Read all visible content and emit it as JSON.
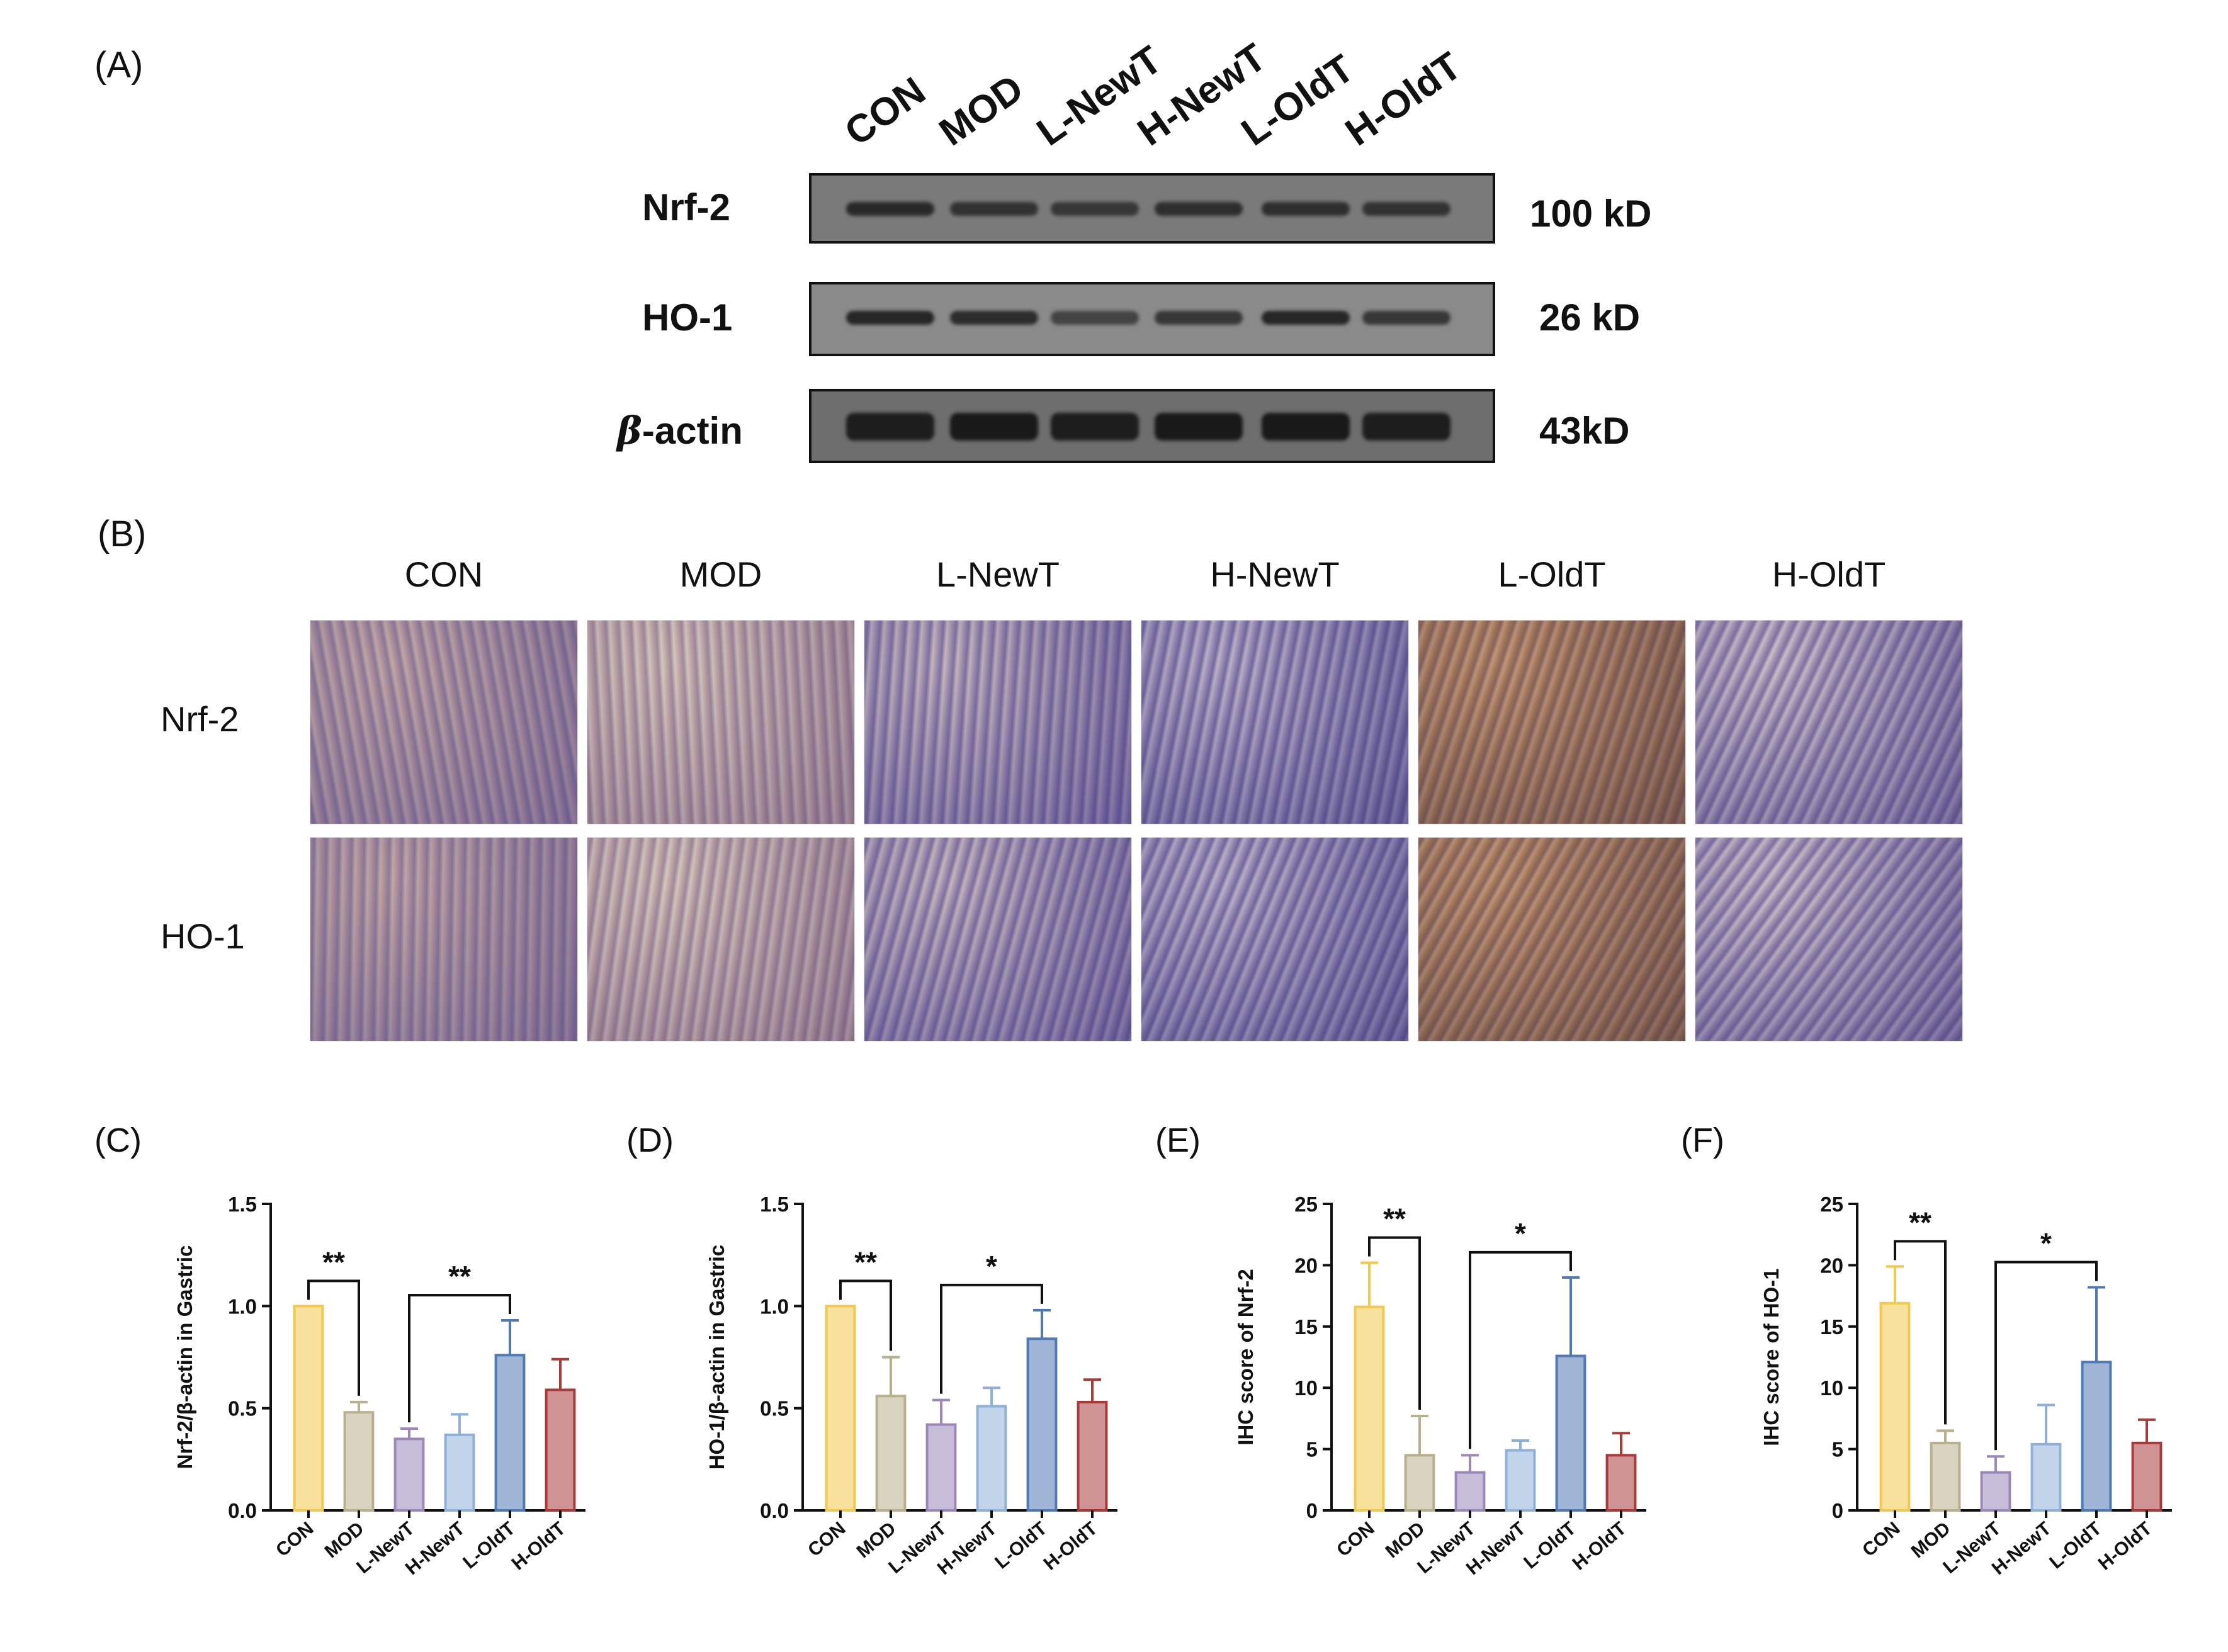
{
  "figure": {
    "panel_a_label": "(A)",
    "panel_b_label": "(B)"
  },
  "western_blot": {
    "lanes": [
      "CON",
      "MOD",
      "L-NewT",
      "H-NewT",
      "L-OldT",
      "H-OldT"
    ],
    "rows": [
      {
        "name": "Nrf-2",
        "size": "100 kD",
        "band_intensity": [
          0.8,
          0.7,
          0.65,
          0.75,
          0.75,
          0.7
        ]
      },
      {
        "name": "HO-1",
        "size": "26 kD",
        "band_intensity": [
          0.85,
          0.8,
          0.6,
          0.7,
          0.85,
          0.7
        ]
      },
      {
        "name_symbol": "β",
        "name": "-actin",
        "size": "43kD",
        "band_intensity": [
          0.9,
          0.95,
          0.9,
          0.95,
          0.95,
          0.9
        ]
      }
    ]
  },
  "ihc": {
    "columns": [
      "CON",
      "MOD",
      "L-NewT",
      "H-NewT",
      "L-OldT",
      "H-OldT"
    ],
    "rows": [
      "Nrf-2",
      "HO-1"
    ]
  },
  "colors": {
    "CON": "#f2c94c",
    "MOD": "#b8b08c",
    "L-NewT": "#9b87b8",
    "H-NewT": "#8fb0d8",
    "L-OldT": "#4f79b5",
    "H-OldT": "#a83a3a"
  },
  "chart_data": [
    {
      "panel": "(C)",
      "type": "bar",
      "categories": [
        "CON",
        "MOD",
        "L-NewT",
        "H-NewT",
        "L-OldT",
        "H-OldT"
      ],
      "values": [
        1.0,
        0.48,
        0.35,
        0.37,
        0.76,
        0.59
      ],
      "errors": [
        0.0,
        0.05,
        0.05,
        0.1,
        0.17,
        0.15
      ],
      "ylabel": "Nrf-2/β-actin in Gastric",
      "ylim": [
        0,
        1.5
      ],
      "yticks": [
        "0.0",
        "0.5",
        "1.0",
        "1.5"
      ],
      "significance": [
        {
          "from": "CON",
          "to": "MOD",
          "label": "**"
        },
        {
          "from": "L-NewT",
          "to": "L-OldT",
          "label": "**"
        }
      ]
    },
    {
      "panel": "(D)",
      "type": "bar",
      "categories": [
        "CON",
        "MOD",
        "L-NewT",
        "H-NewT",
        "L-OldT",
        "H-OldT"
      ],
      "values": [
        1.0,
        0.56,
        0.42,
        0.51,
        0.84,
        0.53
      ],
      "errors": [
        0.0,
        0.19,
        0.12,
        0.09,
        0.14,
        0.11
      ],
      "ylabel": "HO-1/β-actin in Gastric",
      "ylim": [
        0,
        1.5
      ],
      "yticks": [
        "0.0",
        "0.5",
        "1.0",
        "1.5"
      ],
      "significance": [
        {
          "from": "CON",
          "to": "MOD",
          "label": "**"
        },
        {
          "from": "L-NewT",
          "to": "L-OldT",
          "label": "*"
        }
      ]
    },
    {
      "panel": "(E)",
      "type": "bar",
      "categories": [
        "CON",
        "MOD",
        "L-NewT",
        "H-NewT",
        "L-OldT",
        "H-OldT"
      ],
      "values": [
        16.6,
        4.5,
        3.1,
        4.9,
        12.6,
        4.5
      ],
      "errors": [
        3.6,
        3.2,
        1.4,
        0.8,
        6.4,
        1.8
      ],
      "ylabel": "IHC score of Nrf-2",
      "ylim": [
        0,
        25
      ],
      "yticks": [
        "0",
        "5",
        "10",
        "15",
        "20",
        "25"
      ],
      "significance": [
        {
          "from": "CON",
          "to": "MOD",
          "label": "**"
        },
        {
          "from": "L-NewT",
          "to": "L-OldT",
          "label": "*"
        }
      ]
    },
    {
      "panel": "(F)",
      "type": "bar",
      "categories": [
        "CON",
        "MOD",
        "L-NewT",
        "H-NewT",
        "L-OldT",
        "H-OldT"
      ],
      "values": [
        16.9,
        5.5,
        3.1,
        5.4,
        12.1,
        5.5
      ],
      "errors": [
        3.0,
        1.0,
        1.3,
        3.2,
        6.1,
        1.9
      ],
      "ylabel": "IHC score of HO-1",
      "ylim": [
        0,
        25
      ],
      "yticks": [
        "0",
        "5",
        "10",
        "15",
        "20",
        "25"
      ],
      "significance": [
        {
          "from": "CON",
          "to": "MOD",
          "label": "**"
        },
        {
          "from": "L-NewT",
          "to": "L-OldT",
          "label": "*"
        }
      ]
    }
  ]
}
